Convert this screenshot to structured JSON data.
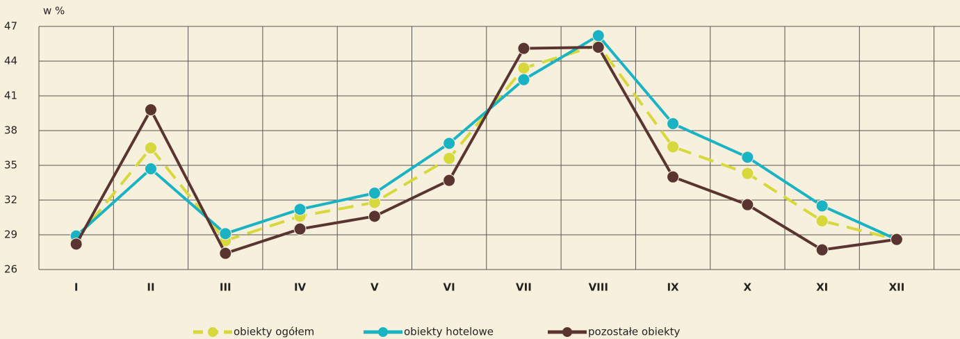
{
  "chart_data": {
    "type": "line",
    "y_label": "w %",
    "categories": [
      "I",
      "II",
      "III",
      "IV",
      "V",
      "VI",
      "VII",
      "VIII",
      "IX",
      "X",
      "XI",
      "XII"
    ],
    "series": [
      {
        "name": "obiekty ogółem",
        "color": "#d6d83c",
        "dashed": true,
        "values": [
          28.6,
          36.5,
          28.5,
          30.6,
          31.8,
          35.6,
          43.4,
          45.4,
          36.6,
          34.3,
          30.2,
          28.6
        ]
      },
      {
        "name": "obiekty hotelowe",
        "color": "#1ab3c4",
        "dashed": false,
        "values": [
          28.9,
          34.7,
          29.1,
          31.2,
          32.6,
          36.9,
          42.4,
          46.2,
          38.6,
          35.7,
          31.5,
          28.6
        ]
      },
      {
        "name": "pozostałe obiekty",
        "color": "#5a3431",
        "dashed": false,
        "values": [
          28.2,
          39.8,
          27.4,
          29.5,
          30.6,
          33.7,
          45.1,
          45.2,
          34.0,
          31.6,
          27.7,
          28.6
        ]
      }
    ],
    "ylim": [
      26,
      47
    ],
    "yticks": [
      26,
      29,
      32,
      35,
      38,
      41,
      44,
      47
    ],
    "grid": true
  }
}
